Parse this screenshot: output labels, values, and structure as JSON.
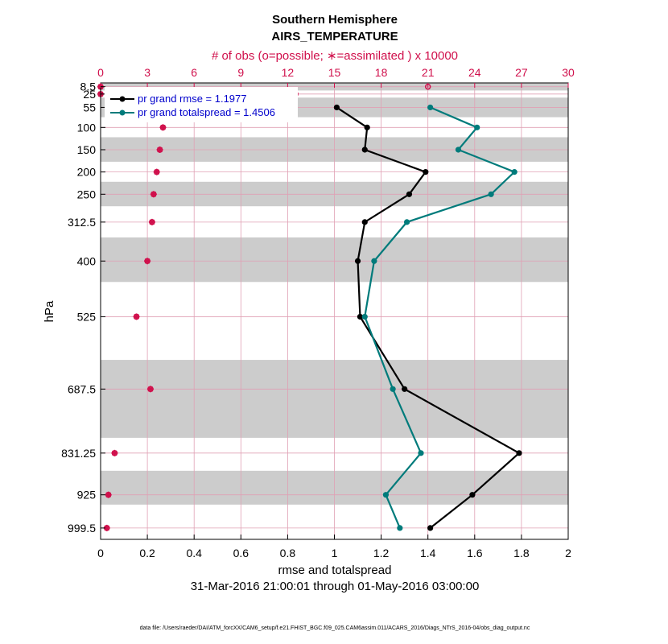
{
  "chart_data": {
    "type": "line",
    "title": "Southern Hemisphere",
    "subtitle": "AIRS_TEMPERATURE",
    "top_axis_label": "# of obs (o=possible; ∗=assimilated ) x 10000",
    "xlabel": "rmse and totalspread",
    "ylabel": "hPa",
    "date_range": "31-Mar-2016 21:00:01 through 01-May-2016 03:00:00",
    "footnote": "data file: /Users/raeder/DAI/ATM_forcXX/CAM6_setup/f.e21.FHIST_BGC.f09_025.CAM6assim.011/ACARS_2016/Diags_NTrS_2016-04/obs_diag_output.nc",
    "xlim": [
      0,
      2
    ],
    "x_ticks": [
      "0",
      "0.2",
      "0.4",
      "0.6",
      "0.8",
      "1",
      "1.2",
      "1.4",
      "1.6",
      "1.8",
      "2"
    ],
    "top_xlim": [
      0,
      30
    ],
    "top_ticks": [
      "0",
      "3",
      "6",
      "9",
      "12",
      "15",
      "18",
      "21",
      "24",
      "27",
      "30"
    ],
    "ylim": [
      1025,
      0
    ],
    "y_scale": "linear-reversed",
    "levels": [
      8.5,
      25,
      55,
      100,
      150,
      200,
      250,
      312.5,
      400,
      525,
      687.5,
      831.25,
      925,
      999.5
    ],
    "level_labels": [
      "8.5",
      "25",
      "55",
      "100",
      "150",
      "200",
      "250",
      "312.5",
      "400",
      "525",
      "687.5",
      "831.25",
      "925",
      "999.5"
    ],
    "level_bounds": [
      0,
      17,
      33,
      77,
      122,
      177,
      222,
      277,
      347,
      447,
      622,
      797,
      871,
      947,
      1025
    ],
    "shaded_bands": [
      [
        0,
        17
      ],
      [
        33,
        77
      ],
      [
        122,
        177
      ],
      [
        222,
        277
      ],
      [
        347,
        447
      ],
      [
        622,
        797
      ],
      [
        871,
        947
      ]
    ],
    "grid": true,
    "legend_position": "top-left",
    "series": [
      {
        "name": "pr grand rmse = 1.1977",
        "color": "#000000",
        "points": [
          [
            1.01,
            55
          ],
          [
            1.14,
            100
          ],
          [
            1.13,
            150
          ],
          [
            1.39,
            200
          ],
          [
            1.32,
            250
          ],
          [
            1.13,
            312.5
          ],
          [
            1.1,
            400
          ],
          [
            1.11,
            525
          ],
          [
            1.3,
            687.5
          ],
          [
            1.79,
            831.25
          ],
          [
            1.59,
            925
          ],
          [
            1.41,
            999.5
          ]
        ]
      },
      {
        "name": "pr grand totalspread = 1.4506",
        "color": "#007b7b",
        "points": [
          [
            1.41,
            55
          ],
          [
            1.61,
            100
          ],
          [
            1.53,
            150
          ],
          [
            1.77,
            200
          ],
          [
            1.67,
            250
          ],
          [
            1.31,
            312.5
          ],
          [
            1.17,
            400
          ],
          [
            1.13,
            525
          ],
          [
            1.25,
            687.5
          ],
          [
            1.37,
            831.25
          ],
          [
            1.22,
            925
          ],
          [
            1.28,
            999.5
          ]
        ]
      }
    ],
    "obs_possible": [
      [
        0.0,
        8.5
      ],
      [
        21.0,
        8.5
      ],
      [
        0.0,
        25
      ],
      [
        12.5,
        25
      ],
      [
        8.3,
        55
      ],
      [
        4.0,
        100
      ],
      [
        3.8,
        150
      ],
      [
        3.6,
        200
      ],
      [
        3.4,
        250
      ],
      [
        3.3,
        312.5
      ],
      [
        3.0,
        400
      ],
      [
        2.3,
        525
      ],
      [
        3.2,
        687.5
      ],
      [
        0.9,
        831.25
      ],
      [
        0.5,
        925
      ],
      [
        0.4,
        999.5
      ]
    ],
    "obs_assimilated": [
      [
        0.0,
        8.5
      ],
      [
        0.0,
        25
      ],
      [
        8.3,
        55
      ],
      [
        4.0,
        100
      ],
      [
        3.8,
        150
      ],
      [
        3.6,
        200
      ],
      [
        3.4,
        250
      ],
      [
        3.3,
        312.5
      ],
      [
        3.0,
        400
      ],
      [
        2.3,
        525
      ],
      [
        3.2,
        687.5
      ],
      [
        0.9,
        831.25
      ],
      [
        0.5,
        925
      ],
      [
        0.4,
        999.5
      ]
    ],
    "obs_color": "#d0104c"
  }
}
